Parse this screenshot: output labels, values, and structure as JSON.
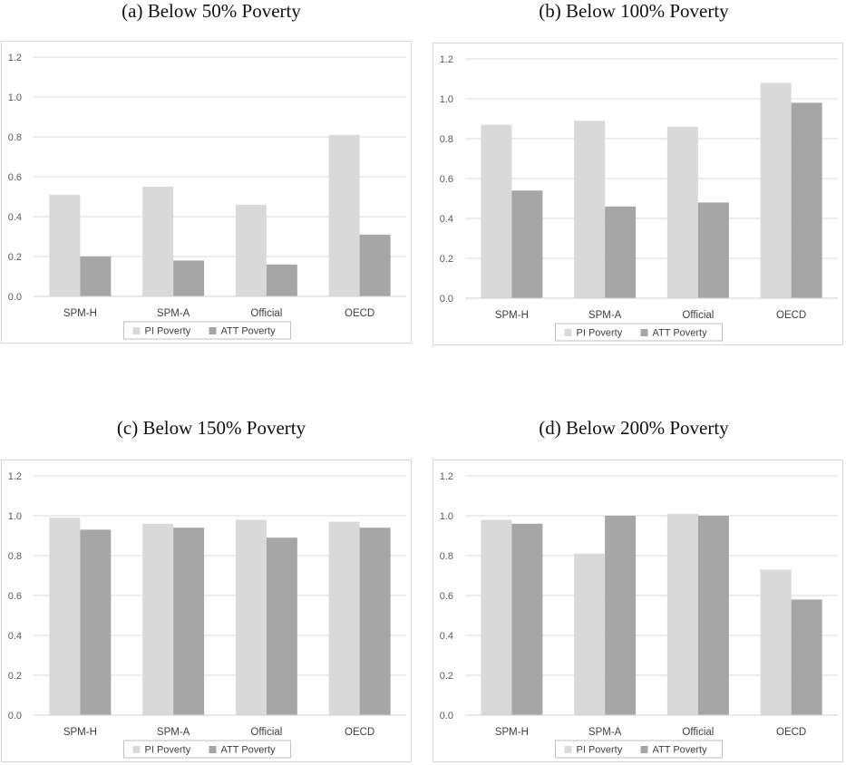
{
  "colors": {
    "pi": "#d9d9d9",
    "att": "#a6a6a6",
    "grid": "#d9d9d9",
    "border": "#d6d6d6"
  },
  "chart_data": [
    {
      "type": "bar",
      "title": "(a) Below 50% Poverty",
      "categories": [
        "SPM-H",
        "SPM-A",
        "Official",
        "OECD"
      ],
      "series": [
        {
          "name": "PI Poverty",
          "values": [
            0.51,
            0.55,
            0.46,
            0.81
          ]
        },
        {
          "name": "ATT Poverty",
          "values": [
            0.2,
            0.18,
            0.16,
            0.31
          ]
        }
      ],
      "yticks": [
        "0.0",
        "0.2",
        "0.4",
        "0.6",
        "0.8",
        "1.0",
        "1.2"
      ],
      "ylim": [
        0,
        1.2
      ],
      "grid": true,
      "legend": "bottom"
    },
    {
      "type": "bar",
      "title": "(b) Below 100% Poverty",
      "categories": [
        "SPM-H",
        "SPM-A",
        "Official",
        "OECD"
      ],
      "series": [
        {
          "name": "PI Poverty",
          "values": [
            0.87,
            0.89,
            0.86,
            1.08
          ]
        },
        {
          "name": "ATT Poverty",
          "values": [
            0.54,
            0.46,
            0.48,
            0.98
          ]
        }
      ],
      "yticks": [
        "0.0",
        "0.2",
        "0.4",
        "0.6",
        "0.8",
        "1.0",
        "1.2"
      ],
      "ylim": [
        0,
        1.2
      ],
      "grid": true,
      "legend": "bottom"
    },
    {
      "type": "bar",
      "title": "(c) Below 150% Poverty",
      "categories": [
        "SPM-H",
        "SPM-A",
        "Official",
        "OECD"
      ],
      "series": [
        {
          "name": "PI Poverty",
          "values": [
            0.99,
            0.96,
            0.98,
            0.97
          ]
        },
        {
          "name": "ATT Poverty",
          "values": [
            0.93,
            0.94,
            0.89,
            0.94
          ]
        }
      ],
      "yticks": [
        "0.0",
        "0.2",
        "0.4",
        "0.6",
        "0.8",
        "1.0",
        "1.2"
      ],
      "ylim": [
        0,
        1.2
      ],
      "grid": true,
      "legend": "bottom"
    },
    {
      "type": "bar",
      "title": "(d) Below 200% Poverty",
      "categories": [
        "SPM-H",
        "SPM-A",
        "Official",
        "OECD"
      ],
      "series": [
        {
          "name": "PI Poverty",
          "values": [
            0.98,
            0.81,
            1.01,
            0.73
          ]
        },
        {
          "name": "ATT Poverty",
          "values": [
            0.96,
            1.0,
            1.0,
            0.58
          ]
        }
      ],
      "yticks": [
        "0.0",
        "0.2",
        "0.4",
        "0.6",
        "0.8",
        "1.0",
        "1.2"
      ],
      "ylim": [
        0,
        1.2
      ],
      "grid": true,
      "legend": "bottom"
    }
  ]
}
